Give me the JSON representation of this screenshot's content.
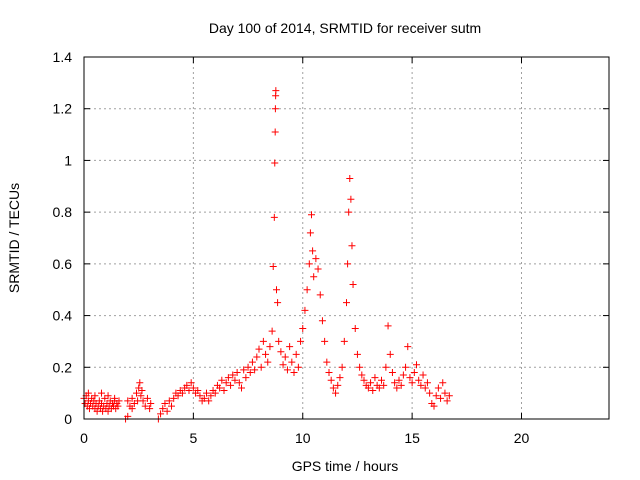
{
  "chart_data": {
    "type": "scatter",
    "title": "Day 100 of 2014, SRMTID for receiver sutm",
    "xlabel": "GPS time / hours",
    "ylabel": "SRMTID / TECUs",
    "xlim": [
      0,
      24
    ],
    "ylim": [
      0,
      1.4
    ],
    "xticks": [
      0,
      5,
      10,
      15,
      20
    ],
    "yticks": [
      0,
      0.2,
      0.4,
      0.6,
      0.8,
      1,
      1.2,
      1.4
    ],
    "ytick_labels": [
      "0",
      "0.2",
      "0.4",
      "0.6",
      "0.8",
      "1",
      "1.2",
      "1.4"
    ],
    "grid": true,
    "marker": "+",
    "series": [
      {
        "name": "SRMTID",
        "color": "#ff0000",
        "points": [
          [
            0.0,
            0.08
          ],
          [
            0.05,
            0.06
          ],
          [
            0.1,
            0.09
          ],
          [
            0.15,
            0.05
          ],
          [
            0.2,
            0.07
          ],
          [
            0.25,
            0.04
          ],
          [
            0.3,
            0.06
          ],
          [
            0.35,
            0.08
          ],
          [
            0.4,
            0.05
          ],
          [
            0.45,
            0.07
          ],
          [
            0.5,
            0.04
          ],
          [
            0.55,
            0.06
          ],
          [
            0.6,
            0.03
          ],
          [
            0.65,
            0.05
          ],
          [
            0.7,
            0.07
          ],
          [
            0.75,
            0.04
          ],
          [
            0.8,
            0.06
          ],
          [
            0.85,
            0.03
          ],
          [
            0.9,
            0.05
          ],
          [
            0.95,
            0.08
          ],
          [
            1.0,
            0.04
          ],
          [
            1.05,
            0.06
          ],
          [
            1.1,
            0.03
          ],
          [
            1.15,
            0.05
          ],
          [
            1.2,
            0.07
          ],
          [
            1.25,
            0.04
          ],
          [
            1.3,
            0.06
          ],
          [
            1.35,
            0.05
          ],
          [
            1.4,
            0.07
          ],
          [
            1.45,
            0.04
          ],
          [
            1.5,
            0.06
          ],
          [
            1.55,
            0.05
          ],
          [
            1.6,
            0.07
          ],
          [
            0.2,
            0.1
          ],
          [
            0.5,
            0.09
          ],
          [
            0.8,
            0.1
          ],
          [
            1.1,
            0.09
          ],
          [
            1.4,
            0.08
          ],
          [
            1.9,
            0.0
          ],
          [
            2.0,
            0.01
          ],
          [
            2.0,
            0.07
          ],
          [
            2.1,
            0.05
          ],
          [
            2.2,
            0.08
          ],
          [
            2.3,
            0.06
          ],
          [
            2.4,
            0.1
          ],
          [
            2.5,
            0.12
          ],
          [
            2.55,
            0.14
          ],
          [
            2.6,
            0.09
          ],
          [
            2.7,
            0.07
          ],
          [
            2.8,
            0.05
          ],
          [
            2.9,
            0.08
          ],
          [
            3.0,
            0.04
          ],
          [
            3.05,
            0.06
          ],
          [
            2.2,
            0.04
          ],
          [
            2.45,
            0.07
          ],
          [
            2.65,
            0.11
          ],
          [
            3.4,
            0.0
          ],
          [
            3.5,
            0.02
          ],
          [
            3.6,
            0.04
          ],
          [
            3.7,
            0.06
          ],
          [
            3.8,
            0.03
          ],
          [
            3.9,
            0.07
          ],
          [
            4.0,
            0.05
          ],
          [
            4.1,
            0.08
          ],
          [
            4.2,
            0.1
          ],
          [
            4.3,
            0.09
          ],
          [
            4.4,
            0.11
          ],
          [
            4.5,
            0.1
          ],
          [
            4.6,
            0.12
          ],
          [
            4.7,
            0.13
          ],
          [
            4.8,
            0.11
          ],
          [
            4.9,
            0.14
          ],
          [
            5.0,
            0.12
          ],
          [
            5.1,
            0.1
          ],
          [
            5.2,
            0.11
          ],
          [
            5.3,
            0.09
          ],
          [
            5.4,
            0.07
          ],
          [
            5.5,
            0.08
          ],
          [
            5.6,
            0.1
          ],
          [
            5.7,
            0.07
          ],
          [
            5.8,
            0.09
          ],
          [
            5.9,
            0.11
          ],
          [
            6.0,
            0.1
          ],
          [
            6.1,
            0.13
          ],
          [
            6.2,
            0.12
          ],
          [
            6.3,
            0.15
          ],
          [
            6.4,
            0.11
          ],
          [
            6.5,
            0.14
          ],
          [
            6.6,
            0.16
          ],
          [
            6.7,
            0.13
          ],
          [
            6.8,
            0.17
          ],
          [
            6.9,
            0.15
          ],
          [
            7.0,
            0.18
          ],
          [
            7.1,
            0.14
          ],
          [
            7.2,
            0.12
          ],
          [
            7.3,
            0.19
          ],
          [
            7.4,
            0.16
          ],
          [
            7.5,
            0.2
          ],
          [
            7.6,
            0.18
          ],
          [
            7.7,
            0.22
          ],
          [
            7.8,
            0.19
          ],
          [
            7.9,
            0.24
          ],
          [
            8.0,
            0.27
          ],
          [
            8.1,
            0.2
          ],
          [
            8.2,
            0.3
          ],
          [
            8.3,
            0.25
          ],
          [
            8.4,
            0.22
          ],
          [
            8.5,
            0.28
          ],
          [
            8.6,
            0.34
          ],
          [
            8.65,
            0.59
          ],
          [
            8.7,
            0.78
          ],
          [
            8.72,
            0.99
          ],
          [
            8.74,
            1.11
          ],
          [
            8.75,
            1.2
          ],
          [
            8.76,
            1.25
          ],
          [
            8.77,
            1.27
          ],
          [
            8.8,
            0.5
          ],
          [
            8.85,
            0.45
          ],
          [
            8.9,
            0.3
          ],
          [
            9.0,
            0.26
          ],
          [
            9.1,
            0.21
          ],
          [
            9.2,
            0.24
          ],
          [
            9.3,
            0.19
          ],
          [
            9.4,
            0.28
          ],
          [
            9.5,
            0.22
          ],
          [
            9.6,
            0.18
          ],
          [
            9.7,
            0.25
          ],
          [
            9.8,
            0.2
          ],
          [
            9.9,
            0.3
          ],
          [
            10.0,
            0.35
          ],
          [
            10.1,
            0.42
          ],
          [
            10.2,
            0.5
          ],
          [
            10.3,
            0.6
          ],
          [
            10.35,
            0.72
          ],
          [
            10.4,
            0.79
          ],
          [
            10.45,
            0.65
          ],
          [
            10.5,
            0.55
          ],
          [
            10.6,
            0.62
          ],
          [
            10.7,
            0.58
          ],
          [
            10.8,
            0.48
          ],
          [
            10.9,
            0.38
          ],
          [
            11.0,
            0.3
          ],
          [
            11.1,
            0.22
          ],
          [
            11.2,
            0.18
          ],
          [
            11.3,
            0.15
          ],
          [
            11.4,
            0.12
          ],
          [
            11.5,
            0.1
          ],
          [
            11.6,
            0.13
          ],
          [
            11.7,
            0.16
          ],
          [
            11.8,
            0.2
          ],
          [
            11.9,
            0.3
          ],
          [
            12.0,
            0.45
          ],
          [
            12.05,
            0.6
          ],
          [
            12.1,
            0.8
          ],
          [
            12.15,
            0.93
          ],
          [
            12.2,
            0.85
          ],
          [
            12.25,
            0.67
          ],
          [
            12.3,
            0.52
          ],
          [
            12.4,
            0.35
          ],
          [
            12.5,
            0.25
          ],
          [
            12.6,
            0.2
          ],
          [
            12.7,
            0.17
          ],
          [
            12.8,
            0.15
          ],
          [
            12.9,
            0.13
          ],
          [
            13.0,
            0.12
          ],
          [
            13.1,
            0.14
          ],
          [
            13.2,
            0.11
          ],
          [
            13.3,
            0.16
          ],
          [
            13.4,
            0.13
          ],
          [
            13.5,
            0.12
          ],
          [
            13.6,
            0.15
          ],
          [
            13.7,
            0.13
          ],
          [
            13.8,
            0.2
          ],
          [
            13.9,
            0.36
          ],
          [
            14.0,
            0.25
          ],
          [
            14.1,
            0.18
          ],
          [
            14.2,
            0.14
          ],
          [
            14.3,
            0.12
          ],
          [
            14.4,
            0.15
          ],
          [
            14.5,
            0.13
          ],
          [
            14.6,
            0.17
          ],
          [
            14.7,
            0.2
          ],
          [
            14.8,
            0.28
          ],
          [
            14.9,
            0.16
          ],
          [
            15.0,
            0.14
          ],
          [
            15.1,
            0.18
          ],
          [
            15.2,
            0.21
          ],
          [
            15.3,
            0.15
          ],
          [
            15.4,
            0.13
          ],
          [
            15.5,
            0.17
          ],
          [
            15.6,
            0.12
          ],
          [
            15.7,
            0.14
          ],
          [
            15.8,
            0.1
          ],
          [
            15.9,
            0.06
          ],
          [
            16.0,
            0.05
          ],
          [
            16.1,
            0.09
          ],
          [
            16.2,
            0.12
          ],
          [
            16.3,
            0.08
          ],
          [
            16.4,
            0.14
          ],
          [
            16.5,
            0.1
          ],
          [
            16.6,
            0.07
          ],
          [
            16.7,
            0.09
          ]
        ]
      }
    ]
  }
}
